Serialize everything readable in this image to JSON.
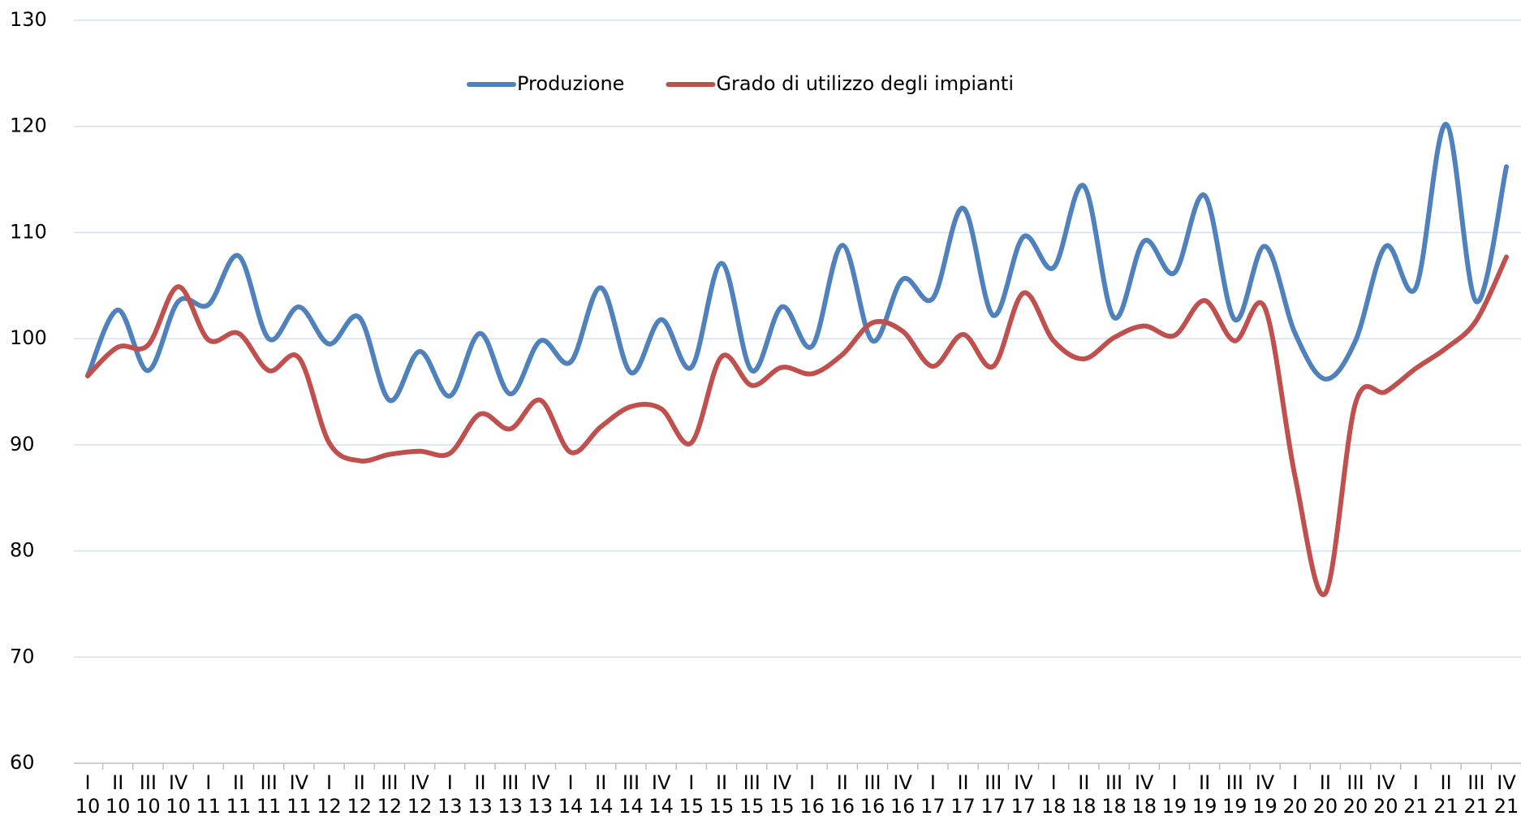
{
  "chart_data": {
    "type": "line",
    "categories": [
      [
        "I",
        "10"
      ],
      [
        "II",
        "10"
      ],
      [
        "III",
        "10"
      ],
      [
        "IV",
        "10"
      ],
      [
        "I",
        "11"
      ],
      [
        "II",
        "11"
      ],
      [
        "III",
        "11"
      ],
      [
        "IV",
        "11"
      ],
      [
        "I",
        "12"
      ],
      [
        "II",
        "12"
      ],
      [
        "III",
        "12"
      ],
      [
        "IV",
        "12"
      ],
      [
        "I",
        "13"
      ],
      [
        "II",
        "13"
      ],
      [
        "III",
        "13"
      ],
      [
        "IV",
        "13"
      ],
      [
        "I",
        "14"
      ],
      [
        "II",
        "14"
      ],
      [
        "III",
        "14"
      ],
      [
        "IV",
        "14"
      ],
      [
        "I",
        "15"
      ],
      [
        "II",
        "15"
      ],
      [
        "III",
        "15"
      ],
      [
        "IV",
        "15"
      ],
      [
        "I",
        "16"
      ],
      [
        "II",
        "16"
      ],
      [
        "III",
        "16"
      ],
      [
        "IV",
        "16"
      ],
      [
        "I",
        "17"
      ],
      [
        "II",
        "17"
      ],
      [
        "III",
        "17"
      ],
      [
        "IV",
        "17"
      ],
      [
        "I",
        "18"
      ],
      [
        "II",
        "18"
      ],
      [
        "III",
        "18"
      ],
      [
        "IV",
        "18"
      ],
      [
        "I",
        "19"
      ],
      [
        "II",
        "19"
      ],
      [
        "III",
        "19"
      ],
      [
        "IV",
        "19"
      ],
      [
        "I",
        "20"
      ],
      [
        "II",
        "20"
      ],
      [
        "III",
        "20"
      ],
      [
        "IV",
        "20"
      ],
      [
        "I",
        "21"
      ],
      [
        "II",
        "21"
      ],
      [
        "III",
        "21"
      ],
      [
        "IV",
        "21"
      ]
    ],
    "series": [
      {
        "name": "Produzione",
        "color": "#4f81bd",
        "values": [
          96.5,
          102.7,
          97,
          103.5,
          103.2,
          107.8,
          100,
          103,
          99.5,
          102,
          94.2,
          98.8,
          94.6,
          100.5,
          94.8,
          99.8,
          97.8,
          104.8,
          96.8,
          101.8,
          97.3,
          107.1,
          97,
          103,
          99.3,
          108.8,
          99.8,
          105.6,
          103.8,
          112.3,
          102.2,
          109.6,
          106.7,
          114.4,
          102,
          109.2,
          106.2,
          113.5,
          101.8,
          108.7,
          100.5,
          96.2,
          99.8,
          108.7,
          104.8,
          120.2,
          103.5,
          116.2
        ]
      },
      {
        "name": "Grado di utilizzo degli impianti",
        "color": "#c0504d",
        "values": [
          96.5,
          99.2,
          99.4,
          104.9,
          99.9,
          100.5,
          97,
          98.2,
          90.2,
          88.5,
          89.1,
          89.4,
          89.2,
          92.9,
          91.5,
          94.2,
          89.3,
          91.7,
          93.6,
          93.4,
          90.2,
          98.3,
          95.6,
          97.3,
          96.7,
          98.5,
          101.5,
          100.7,
          97.4,
          100.4,
          97.4,
          104.3,
          99.8,
          98.1,
          100.1,
          101.2,
          100.3,
          103.6,
          99.8,
          102.9,
          87,
          76,
          93.9,
          95,
          97.2,
          99.1,
          101.7,
          107.7
        ]
      }
    ],
    "ylim": [
      60,
      130
    ],
    "yticks": [
      60,
      70,
      80,
      90,
      100,
      110,
      120,
      130
    ],
    "grid": true,
    "legend": "top"
  }
}
